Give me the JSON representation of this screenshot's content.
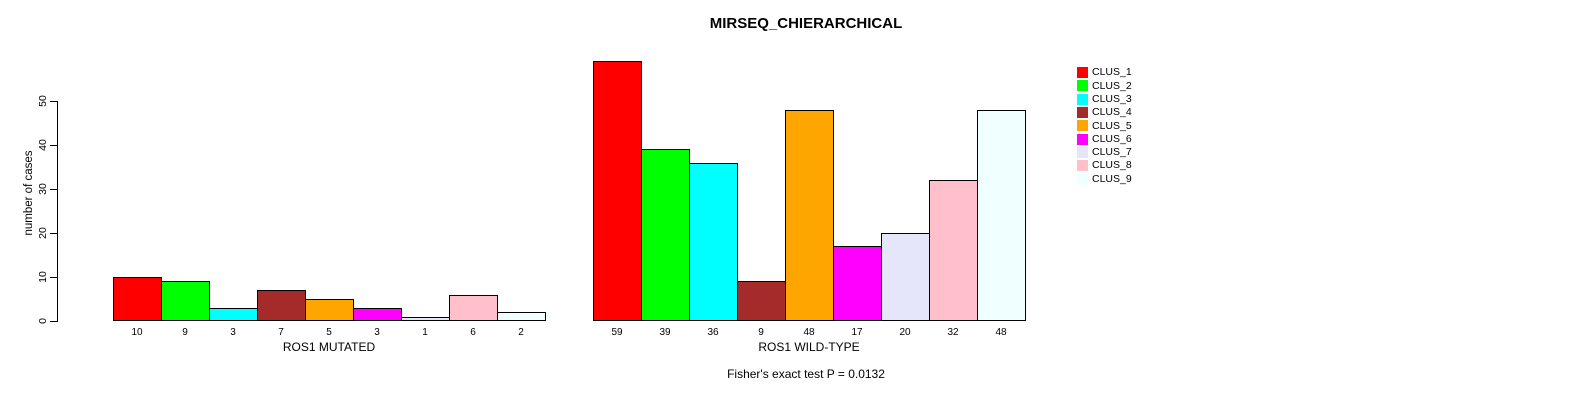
{
  "chart_data": {
    "type": "bar",
    "title": "MIRSEQ_CHIERARCHICAL",
    "ylabel": "number of cases",
    "xlabel": "",
    "yticks": [
      0,
      10,
      20,
      30,
      40,
      50
    ],
    "ylim": [
      0,
      59
    ],
    "grid": false,
    "legend_position": "right",
    "clusters": [
      {
        "label": "CLUS_1",
        "color": "#FF0000"
      },
      {
        "label": "CLUS_2",
        "color": "#00FF00"
      },
      {
        "label": "CLUS_3",
        "color": "#00FFFF"
      },
      {
        "label": "CLUS_4",
        "color": "#A52A2A"
      },
      {
        "label": "CLUS_5",
        "color": "#FFA500"
      },
      {
        "label": "CLUS_6",
        "color": "#FF00FF"
      },
      {
        "label": "CLUS_7",
        "color": "#E6E6FA"
      },
      {
        "label": "CLUS_8",
        "color": "#FFC0CB"
      },
      {
        "label": "CLUS_9",
        "color": "#F0FFFF"
      }
    ],
    "groups": [
      {
        "label": "ROS1 MUTATED",
        "values": [
          10,
          9,
          3,
          7,
          5,
          3,
          1,
          6,
          2
        ]
      },
      {
        "label": "ROS1 WILD-TYPE",
        "values": [
          59,
          39,
          36,
          9,
          48,
          17,
          20,
          32,
          48
        ]
      }
    ],
    "annotation": "Fisher's exact test P = 0.0132"
  },
  "colors": {
    "background": "#FFFFFF",
    "axis": "#000000",
    "bar_border": "#000000",
    "text": "#000000"
  }
}
